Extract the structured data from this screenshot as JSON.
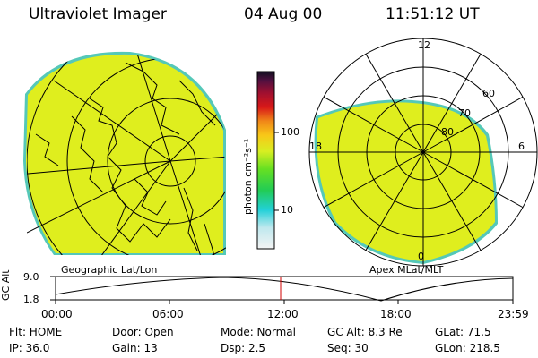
{
  "header": {
    "title": "Ultraviolet Imager",
    "date": "04 Aug 00",
    "time": "11:51:12 UT"
  },
  "geo_panel": {
    "caption": "Geographic Lat/Lon"
  },
  "colorbar": {
    "unit_label": "photon cm⁻²s⁻¹",
    "tick_100": "100",
    "tick_10": "10"
  },
  "apex_panel": {
    "caption": "Apex MLat/MLT",
    "mlt_top": "12",
    "mlt_left": "18",
    "mlt_right": "6",
    "mlt_bottom": "0",
    "mlat_60": "60",
    "mlat_70": "70",
    "mlat_80": "80"
  },
  "orbit": {
    "axis_label": "GC Alt",
    "y_max": "9.0",
    "y_min": "1.8",
    "x_ticks": [
      "00:00",
      "06:00",
      "12:00",
      "18:00",
      "23:59"
    ]
  },
  "info": {
    "flt": "Flt: HOME",
    "door": "Door: Open",
    "mode": "Mode: Normal",
    "gc_alt": "GC Alt: 8.3 Re",
    "glat": "GLat:  71.5",
    "ip": "IP: 36.0",
    "gain": "Gain: 13",
    "dsp": "Dsp:     2.5",
    "seq": "Seq: 30",
    "glon": "GLon: 218.5"
  },
  "colors": {
    "image_fill": "#dfee1e",
    "image_edge": "#55c8b8",
    "marker": "#d00000"
  }
}
